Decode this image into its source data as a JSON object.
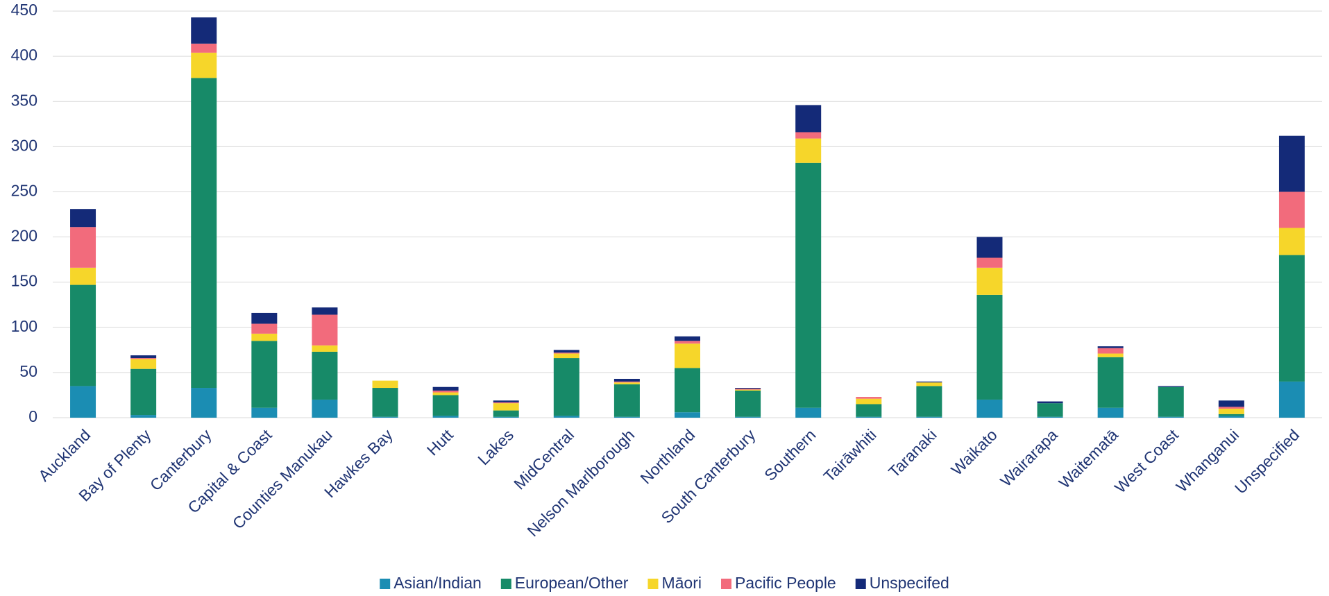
{
  "chart_data": {
    "type": "stacked_bar",
    "categories": [
      "Auckland",
      "Bay of Plenty",
      "Canterbury",
      "Capital & Coast",
      "Counties Manukau",
      "Hawkes Bay",
      "Hutt",
      "Lakes",
      "MidCentral",
      "Nelson Marlborough",
      "Northland",
      "South Canterbury",
      "Southern",
      "Tairāwhiti",
      "Taranaki",
      "Waikato",
      "Wairarapa",
      "Waitematā",
      "West Coast",
      "Whanganui",
      "Unspecified"
    ],
    "series": [
      {
        "name": "Asian/Indian",
        "color": "#1b8db3",
        "values": [
          35,
          3,
          33,
          11,
          20,
          1,
          2,
          1,
          2,
          1,
          6,
          1,
          11,
          1,
          1,
          20,
          1,
          11,
          1,
          2,
          40
        ]
      },
      {
        "name": "European/Other",
        "color": "#178a68",
        "values": [
          112,
          51,
          343,
          74,
          53,
          32,
          23,
          7,
          64,
          36,
          49,
          29,
          271,
          14,
          34,
          116,
          15,
          56,
          33,
          2,
          140
        ]
      },
      {
        "name": "Māori",
        "color": "#f6d62a",
        "values": [
          19,
          11,
          28,
          8,
          7,
          8,
          3,
          8,
          5,
          2,
          27,
          1,
          27,
          6,
          4,
          30,
          0,
          4,
          0,
          6,
          30
        ]
      },
      {
        "name": "Pacific People",
        "color": "#f26b7c",
        "values": [
          45,
          1,
          10,
          11,
          34,
          0,
          2,
          1,
          1,
          1,
          3,
          1,
          7,
          2,
          0,
          11,
          0,
          6,
          0,
          2,
          40
        ]
      },
      {
        "name": "Unspecifed",
        "color": "#142a78",
        "values": [
          20,
          3,
          29,
          12,
          8,
          0,
          4,
          2,
          3,
          3,
          5,
          1,
          30,
          0,
          1,
          23,
          2,
          2,
          1,
          7,
          62
        ]
      }
    ],
    "ylim": [
      0,
      450
    ],
    "yticks": [
      0,
      50,
      100,
      150,
      200,
      250,
      300,
      350,
      400,
      450
    ],
    "grid": true,
    "legend": "bottom"
  }
}
